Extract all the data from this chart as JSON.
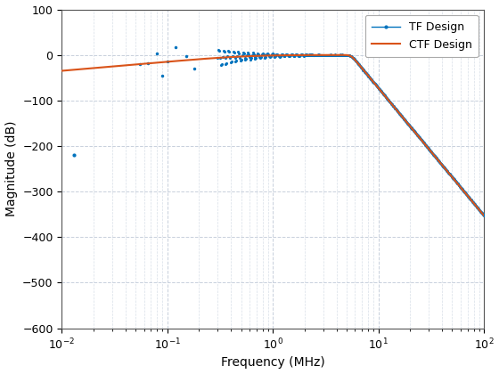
{
  "xlabel": "Frequency (MHz)",
  "ylabel": "Magnitude (dB)",
  "xlim": [
    0.01,
    100
  ],
  "ylim": [
    -600,
    100
  ],
  "yticks": [
    100,
    0,
    -100,
    -200,
    -300,
    -400,
    -500,
    -600
  ],
  "legend": [
    "TF Design",
    "CTF Design"
  ],
  "tf_color": "#0072BD",
  "ctf_color": "#D95319",
  "grid_major_color": "#c8d0dc",
  "grid_minor_color": "#d8dfe8",
  "background_color": "#ffffff",
  "figsize": [
    5.6,
    4.2
  ],
  "dpi": 100,
  "ctf_f_low": 0.55,
  "ctf_f_high": 5.5,
  "ctf_n_lo": 1,
  "ctf_n_hi": 14
}
